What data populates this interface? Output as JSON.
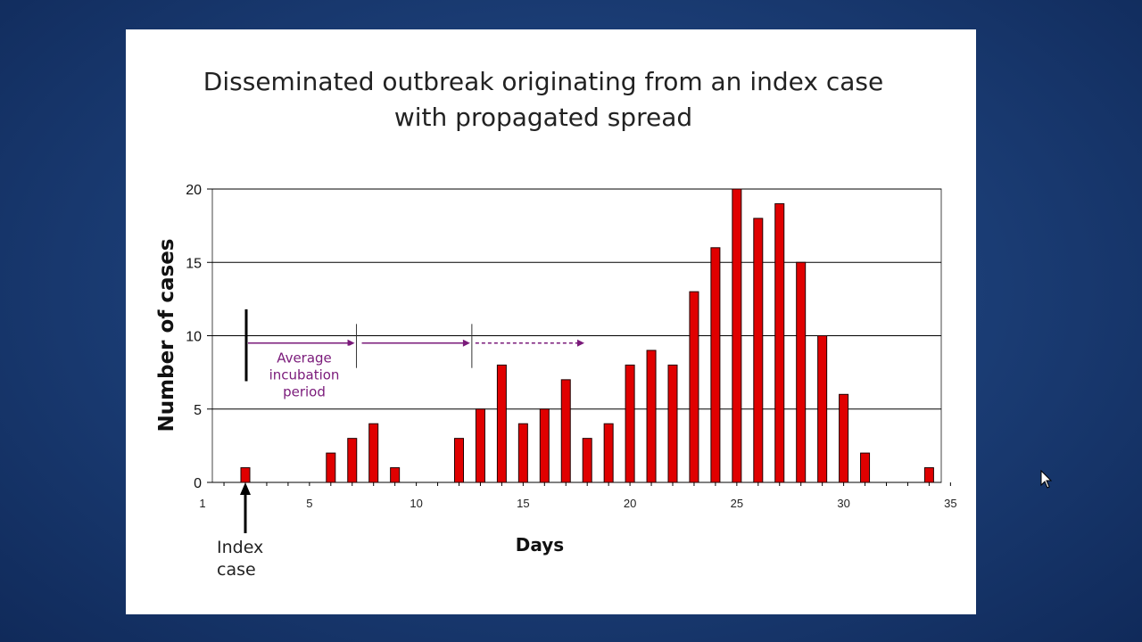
{
  "slide": {
    "title_line1": "Disseminated outbreak originating from an index case",
    "title_line2": "with propagated spread"
  },
  "annotations": {
    "incubation": [
      "Average",
      "incubation",
      "period"
    ],
    "index_case": [
      "Index",
      "case"
    ]
  },
  "colors": {
    "bar": "#e00000",
    "bar_border": "#200000",
    "annotation": "#7a1a7a",
    "grid": "#000000"
  },
  "chart_data": {
    "type": "bar",
    "xlabel": "Days",
    "ylabel": "Number of cases",
    "xlim": [
      1,
      35
    ],
    "ylim": [
      0,
      20
    ],
    "x_ticks": [
      1,
      5,
      10,
      15,
      20,
      25,
      30,
      35
    ],
    "y_ticks": [
      0,
      5,
      10,
      15,
      20
    ],
    "grid": "horizontal",
    "days": [
      2,
      6,
      7,
      8,
      9,
      12,
      13,
      14,
      15,
      16,
      17,
      18,
      19,
      20,
      21,
      22,
      23,
      24,
      25,
      26,
      27,
      28,
      29,
      30,
      31,
      34
    ],
    "values": [
      1,
      2,
      3,
      4,
      1,
      3,
      5,
      8,
      4,
      5,
      7,
      3,
      4,
      8,
      9,
      8,
      13,
      16,
      20,
      18,
      19,
      15,
      10,
      6,
      2,
      1
    ],
    "incubation_markers_days": [
      7.2,
      12.6
    ]
  }
}
